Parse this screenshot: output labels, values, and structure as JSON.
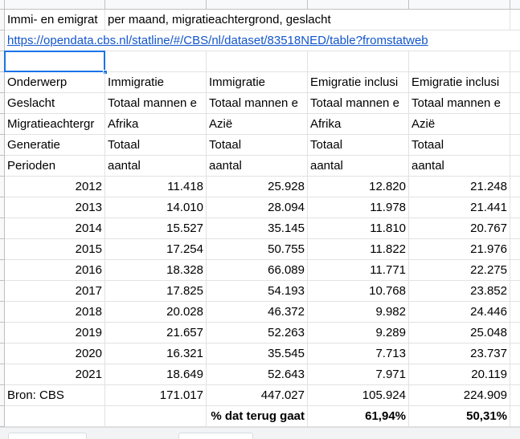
{
  "title_row": [
    "Immi- en emigrat",
    "per maand, migratieachtergrond, geslacht"
  ],
  "link": "https://opendata.cbs.nl/statline/#/CBS/nl/dataset/83518NED/table?fromstatweb",
  "header_rows": [
    [
      "Onderwerp",
      "Immigratie",
      "Immigratie",
      "Emigratie inclusi",
      "Emigratie inclusi"
    ],
    [
      "Geslacht",
      "Totaal mannen e",
      "Totaal mannen e",
      "Totaal mannen e",
      "Totaal mannen e"
    ],
    [
      "Migratieachtergr",
      "Afrika",
      "Azië",
      "Afrika",
      "Azië"
    ],
    [
      "Generatie",
      "Totaal",
      "Totaal",
      "Totaal",
      "Totaal"
    ],
    [
      "Perioden",
      "aantal",
      "aantal",
      "aantal",
      "aantal"
    ]
  ],
  "data_rows": [
    [
      "2012",
      "11.418",
      "25.928",
      "12.820",
      "21.248"
    ],
    [
      "2013",
      "14.010",
      "28.094",
      "11.978",
      "21.441"
    ],
    [
      "2014",
      "15.527",
      "35.145",
      "11.810",
      "20.767"
    ],
    [
      "2015",
      "17.254",
      "50.755",
      "11.822",
      "21.976"
    ],
    [
      "2016",
      "18.328",
      "66.089",
      "11.771",
      "22.275"
    ],
    [
      "2017",
      "17.825",
      "54.193",
      "10.768",
      "23.852"
    ],
    [
      "2018",
      "20.028",
      "46.372",
      "9.982",
      "24.446"
    ],
    [
      "2019",
      "21.657",
      "52.263",
      "9.289",
      "25.048"
    ],
    [
      "2020",
      "16.321",
      "35.545",
      "7.713",
      "23.737"
    ],
    [
      "2021",
      "18.649",
      "52.643",
      "7.971",
      "20.119"
    ]
  ],
  "totals_row": [
    "Bron: CBS",
    "171.017",
    "447.027",
    "105.924",
    "224.909"
  ],
  "ratio_row": {
    "label": "% dat terug gaat",
    "values": [
      "61,94%",
      "50,31%"
    ]
  }
}
